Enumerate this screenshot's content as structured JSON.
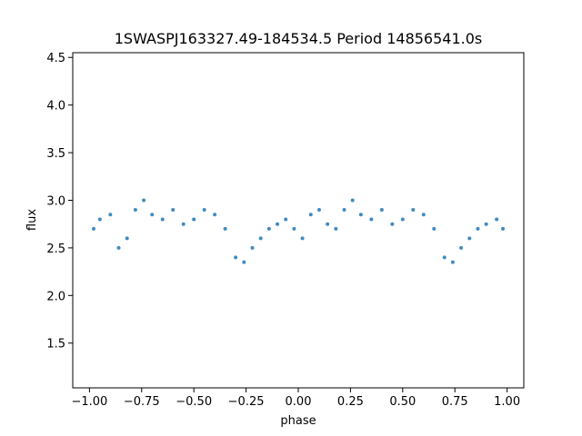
{
  "chart_data": {
    "type": "scatter",
    "title": "1SWASPJ163327.49-184534.5 Period 14856541.0s",
    "xlabel": "phase",
    "ylabel": "flux",
    "xlim": [
      -1.08,
      1.08
    ],
    "ylim": [
      1.03,
      4.55
    ],
    "xticks": [
      -1.0,
      -0.75,
      -0.5,
      -0.25,
      0.0,
      0.25,
      0.5,
      0.75,
      1.0
    ],
    "xtick_labels": [
      "−1.00",
      "−0.75",
      "−0.50",
      "−0.25",
      "0.00",
      "0.25",
      "0.50",
      "0.75",
      "1.00"
    ],
    "yticks": [
      1.5,
      2.0,
      2.5,
      3.0,
      3.5,
      4.0,
      4.5
    ],
    "ytick_labels": [
      "1.5",
      "2.0",
      "2.5",
      "3.0",
      "3.5",
      "4.0",
      "4.5"
    ],
    "grid": false,
    "series": [
      {
        "color": "#1f77b4",
        "x": [
          -0.98,
          -0.95,
          -0.9,
          -0.86,
          -0.82,
          -0.78,
          -0.74,
          -0.7,
          -0.65,
          -0.6,
          -0.55,
          -0.5,
          -0.45,
          -0.4,
          -0.35,
          -0.3,
          -0.26,
          -0.22,
          -0.18,
          -0.14,
          -0.1,
          -0.06,
          -0.02,
          0.02,
          0.06,
          0.1,
          0.14,
          0.18,
          0.22,
          0.26,
          0.3,
          0.35,
          0.4,
          0.45,
          0.5,
          0.55,
          0.6,
          0.65,
          0.7,
          0.74,
          0.78,
          0.82,
          0.86,
          0.9,
          0.95,
          0.98
        ],
        "y": [
          2.7,
          2.8,
          2.85,
          2.5,
          2.6,
          2.9,
          3.0,
          2.85,
          2.8,
          2.9,
          2.75,
          2.8,
          2.9,
          2.85,
          2.7,
          2.4,
          2.35,
          2.5,
          2.6,
          2.7,
          2.75,
          2.8,
          2.7,
          2.6,
          2.85,
          2.9,
          2.75,
          2.7,
          2.9,
          3.0,
          2.85,
          2.8,
          2.9,
          2.75,
          2.8,
          2.9,
          2.85,
          2.7,
          2.4,
          2.35,
          2.5,
          2.6,
          2.7,
          2.75,
          2.8,
          2.7
        ]
      }
    ]
  }
}
